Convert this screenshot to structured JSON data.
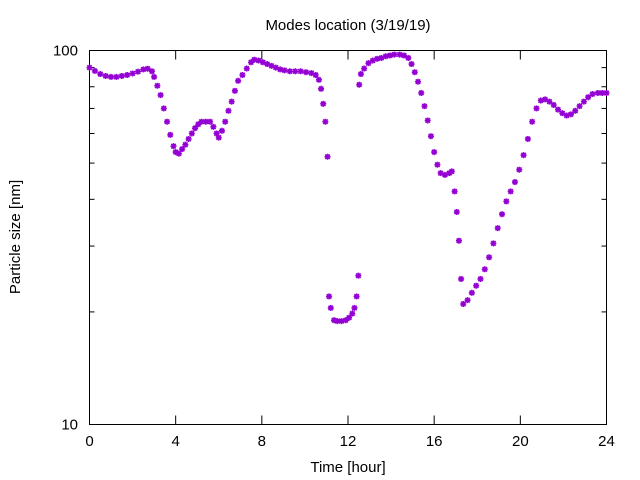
{
  "chart_data": {
    "type": "scatter",
    "title": "Modes location (3/19/19)",
    "xlabel": "Time [hour]",
    "ylabel": "Particle size [nm]",
    "xlim": [
      0,
      24
    ],
    "ylim": [
      10,
      100
    ],
    "yscale": "log",
    "x_ticks": [
      0,
      4,
      8,
      12,
      16,
      20,
      24
    ],
    "x_tick_labels": [
      "0",
      "4",
      "8",
      "12",
      "16",
      "20",
      "24"
    ],
    "y_ticks": [
      10,
      100
    ],
    "y_tick_labels": [
      "10",
      "100"
    ],
    "grid": false,
    "legend": false,
    "marker": "asterisk",
    "colors": {
      "series": "#9400d3",
      "axis": "#000000",
      "background": "#ffffff"
    },
    "points": [
      [
        0.0,
        90.0
      ],
      [
        0.25,
        88.2
      ],
      [
        0.5,
        86.5
      ],
      [
        0.75,
        85.5
      ],
      [
        1.0,
        85.0
      ],
      [
        1.25,
        85.0
      ],
      [
        1.5,
        85.5
      ],
      [
        1.75,
        86.0
      ],
      [
        2.0,
        86.8
      ],
      [
        2.25,
        87.8
      ],
      [
        2.5,
        89.0
      ],
      [
        2.7,
        89.4
      ],
      [
        2.9,
        88.0
      ],
      [
        3.0,
        85.0
      ],
      [
        3.15,
        80.5
      ],
      [
        3.3,
        76.0
      ],
      [
        3.45,
        70.0
      ],
      [
        3.6,
        64.5
      ],
      [
        3.75,
        59.5
      ],
      [
        3.9,
        55.5
      ],
      [
        4.0,
        53.5
      ],
      [
        4.15,
        53.0
      ],
      [
        4.3,
        54.5
      ],
      [
        4.45,
        56.0
      ],
      [
        4.6,
        58.0
      ],
      [
        4.75,
        60.0
      ],
      [
        4.9,
        62.0
      ],
      [
        5.05,
        63.5
      ],
      [
        5.2,
        64.5
      ],
      [
        5.4,
        64.5
      ],
      [
        5.6,
        64.5
      ],
      [
        5.75,
        62.5
      ],
      [
        5.9,
        60.0
      ],
      [
        6.0,
        58.5
      ],
      [
        6.15,
        61.0
      ],
      [
        6.3,
        64.5
      ],
      [
        6.45,
        69.0
      ],
      [
        6.6,
        73.0
      ],
      [
        6.75,
        78.0
      ],
      [
        6.9,
        83.0
      ],
      [
        7.1,
        86.0
      ],
      [
        7.3,
        89.5
      ],
      [
        7.5,
        93.0
      ],
      [
        7.65,
        94.5
      ],
      [
        7.85,
        94.0
      ],
      [
        8.05,
        93.0
      ],
      [
        8.25,
        92.0
      ],
      [
        8.45,
        91.0
      ],
      [
        8.65,
        90.0
      ],
      [
        8.85,
        89.0
      ],
      [
        9.05,
        88.5
      ],
      [
        9.3,
        88.0
      ],
      [
        9.55,
        88.0
      ],
      [
        9.8,
        88.0
      ],
      [
        10.05,
        87.5
      ],
      [
        10.3,
        87.0
      ],
      [
        10.5,
        86.0
      ],
      [
        10.65,
        83.5
      ],
      [
        10.75,
        79.0
      ],
      [
        10.85,
        72.0
      ],
      [
        10.95,
        64.5
      ],
      [
        11.05,
        52.0
      ],
      [
        11.12,
        22.0
      ],
      [
        11.2,
        20.5
      ],
      [
        11.35,
        19.0
      ],
      [
        11.5,
        18.9
      ],
      [
        11.7,
        18.9
      ],
      [
        11.9,
        19.0
      ],
      [
        12.05,
        19.3
      ],
      [
        12.2,
        19.8
      ],
      [
        12.3,
        20.5
      ],
      [
        12.4,
        22.0
      ],
      [
        12.48,
        25.0
      ],
      [
        12.52,
        81.0
      ],
      [
        12.6,
        86.5
      ],
      [
        12.75,
        89.5
      ],
      [
        12.95,
        92.5
      ],
      [
        13.15,
        94.0
      ],
      [
        13.35,
        95.0
      ],
      [
        13.55,
        95.5
      ],
      [
        13.75,
        96.5
      ],
      [
        13.95,
        97.0
      ],
      [
        14.15,
        97.5
      ],
      [
        14.4,
        97.5
      ],
      [
        14.6,
        97.0
      ],
      [
        14.8,
        95.5
      ],
      [
        14.95,
        92.0
      ],
      [
        15.1,
        87.5
      ],
      [
        15.25,
        82.5
      ],
      [
        15.4,
        77.0
      ],
      [
        15.55,
        71.0
      ],
      [
        15.7,
        65.0
      ],
      [
        15.85,
        59.0
      ],
      [
        16.0,
        53.5
      ],
      [
        16.15,
        49.5
      ],
      [
        16.3,
        47.0
      ],
      [
        16.5,
        46.5
      ],
      [
        16.7,
        47.0
      ],
      [
        16.82,
        47.5
      ],
      [
        16.95,
        42.0
      ],
      [
        17.05,
        37.0
      ],
      [
        17.15,
        31.0
      ],
      [
        17.25,
        24.5
      ],
      [
        17.35,
        21.0
      ],
      [
        17.55,
        21.5
      ],
      [
        17.75,
        22.5
      ],
      [
        17.95,
        23.5
      ],
      [
        18.15,
        24.5
      ],
      [
        18.35,
        26.0
      ],
      [
        18.55,
        28.0
      ],
      [
        18.75,
        30.5
      ],
      [
        18.95,
        33.5
      ],
      [
        19.15,
        36.5
      ],
      [
        19.35,
        39.5
      ],
      [
        19.55,
        42.0
      ],
      [
        19.75,
        44.5
      ],
      [
        19.95,
        48.0
      ],
      [
        20.15,
        52.5
      ],
      [
        20.35,
        58.0
      ],
      [
        20.55,
        64.5
      ],
      [
        20.75,
        70.0
      ],
      [
        20.95,
        73.5
      ],
      [
        21.15,
        74.0
      ],
      [
        21.35,
        73.0
      ],
      [
        21.55,
        71.5
      ],
      [
        21.75,
        69.5
      ],
      [
        21.95,
        68.0
      ],
      [
        22.15,
        67.0
      ],
      [
        22.35,
        67.5
      ],
      [
        22.55,
        69.0
      ],
      [
        22.75,
        71.0
      ],
      [
        22.95,
        73.0
      ],
      [
        23.15,
        75.0
      ],
      [
        23.35,
        76.5
      ],
      [
        23.6,
        77.0
      ],
      [
        23.8,
        77.0
      ],
      [
        24.0,
        77.0
      ]
    ]
  }
}
